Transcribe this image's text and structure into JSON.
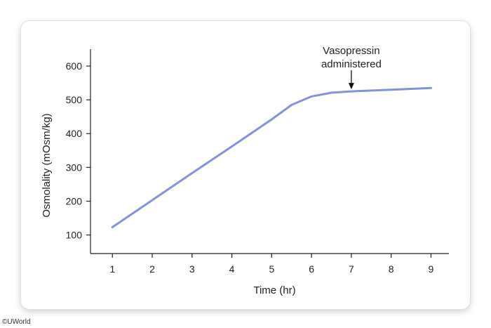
{
  "chart_data": {
    "type": "line",
    "xlabel": "Time (hr)",
    "ylabel": "Osmolality (mOsm/kg)",
    "xlim": [
      0.45,
      9.45
    ],
    "ylim": [
      45,
      650
    ],
    "x_ticks": [
      1,
      2,
      3,
      4,
      5,
      6,
      7,
      8,
      9
    ],
    "y_ticks": [
      100,
      200,
      300,
      400,
      500,
      600
    ],
    "series": [
      {
        "x": [
          1,
          2,
          3,
          4,
          5,
          5.5,
          6,
          6.5,
          7,
          8,
          9
        ],
        "y": [
          123,
          203,
          283,
          362,
          442,
          485,
          510,
          521,
          525,
          530,
          535
        ],
        "color": "#8393da"
      }
    ],
    "annotations": [
      {
        "text_lines": [
          "Vasopressin",
          "administered"
        ],
        "x": 7,
        "y": 525,
        "arrow": true
      }
    ],
    "grid": false
  },
  "footer": {
    "copyright": "©UWorld"
  }
}
